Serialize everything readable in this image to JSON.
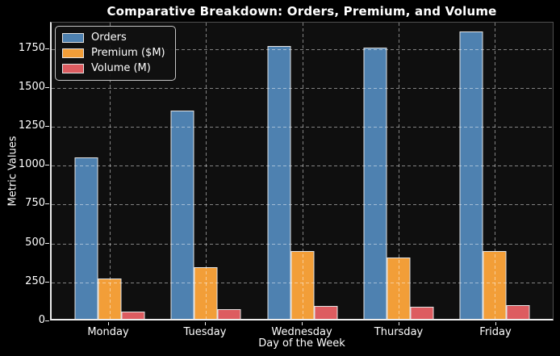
{
  "chart_data": {
    "type": "bar",
    "title": "Comparative Breakdown: Orders, Premium, and Volume",
    "xlabel": "Day of the Week",
    "ylabel": "Metric Values",
    "categories": [
      "Monday",
      "Tuesday",
      "Wednesday",
      "Thursday",
      "Friday"
    ],
    "series": [
      {
        "name": "Orders",
        "color": "#4e81b0",
        "values": [
          1040,
          1340,
          1755,
          1745,
          1850
        ]
      },
      {
        "name": "Premium ($M)",
        "color": "#f29e38",
        "values": [
          260,
          330,
          435,
          395,
          435
        ]
      },
      {
        "name": "Volume (M)",
        "color": "#dd5c60",
        "values": [
          45,
          60,
          85,
          80,
          90
        ]
      }
    ],
    "ylim": [
      0,
      1920
    ],
    "yticks": [
      0,
      250,
      500,
      750,
      1000,
      1250,
      1500,
      1750
    ],
    "legend_position": "upper left",
    "grid": "dashed, both axes, drawn above bars",
    "style": {
      "figure_background": "#000000",
      "plot_background": "#0f0f0f",
      "text_color": "#ffffff",
      "grid_color": "rgba(255,255,255,0.48)",
      "bar_edge_color": "#e3e3e3"
    }
  }
}
